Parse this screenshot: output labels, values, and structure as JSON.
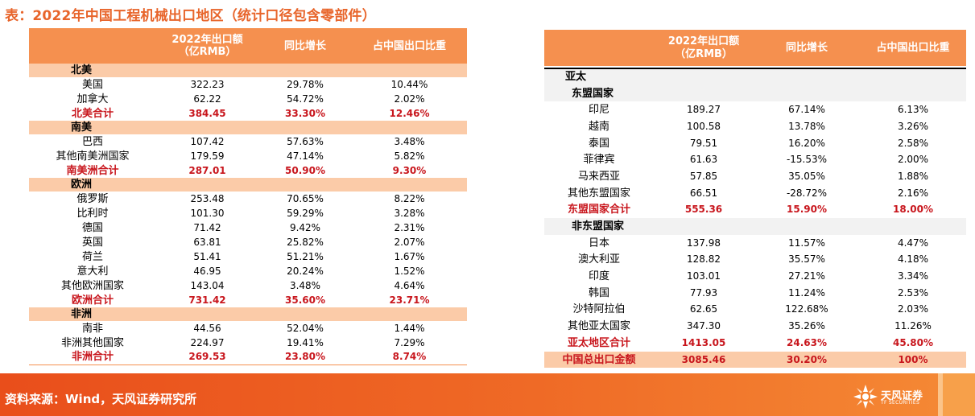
{
  "title": "表：2022年中国工程机械出口地区（统计口径包含零部件）",
  "headers": {
    "amount_line1": "2022年出口额",
    "amount_line2": "（亿RMB）",
    "growth": "同比增长",
    "share": "占中国出口比重"
  },
  "left": {
    "groups": [
      {
        "region": "北美",
        "rows": [
          {
            "name": "美国",
            "amount": "322.23",
            "growth": "29.78%",
            "share": "10.44%"
          },
          {
            "name": "加拿大",
            "amount": "62.22",
            "growth": "54.72%",
            "share": "2.02%"
          }
        ],
        "total": {
          "name": "北美合计",
          "amount": "384.45",
          "growth": "33.30%",
          "share": "12.46%"
        }
      },
      {
        "region": "南美",
        "rows": [
          {
            "name": "巴西",
            "amount": "107.42",
            "growth": "57.63%",
            "share": "3.48%"
          },
          {
            "name": "其他南美洲国家",
            "amount": "179.59",
            "growth": "47.14%",
            "share": "5.82%"
          }
        ],
        "total": {
          "name": "南美洲合计",
          "amount": "287.01",
          "growth": "50.90%",
          "share": "9.30%"
        }
      },
      {
        "region": "欧洲",
        "rows": [
          {
            "name": "俄罗斯",
            "amount": "253.48",
            "growth": "70.65%",
            "share": "8.22%"
          },
          {
            "name": "比利时",
            "amount": "101.30",
            "growth": "59.29%",
            "share": "3.28%"
          },
          {
            "name": "德国",
            "amount": "71.42",
            "growth": "9.42%",
            "share": "2.31%"
          },
          {
            "name": "英国",
            "amount": "63.81",
            "growth": "25.82%",
            "share": "2.07%"
          },
          {
            "name": "荷兰",
            "amount": "51.41",
            "growth": "51.21%",
            "share": "1.67%"
          },
          {
            "name": "意大利",
            "amount": "46.95",
            "growth": "20.24%",
            "share": "1.52%"
          },
          {
            "name": "其他欧洲国家",
            "amount": "143.04",
            "growth": "3.48%",
            "share": "4.64%"
          }
        ],
        "total": {
          "name": "欧洲合计",
          "amount": "731.42",
          "growth": "35.60%",
          "share": "23.71%"
        }
      },
      {
        "region": "非洲",
        "rows": [
          {
            "name": "南非",
            "amount": "44.56",
            "growth": "52.04%",
            "share": "1.44%"
          },
          {
            "name": "非洲其他国家",
            "amount": "224.97",
            "growth": "19.41%",
            "share": "7.29%"
          }
        ],
        "total": {
          "name": "非洲合计",
          "amount": "269.53",
          "growth": "23.80%",
          "share": "8.74%"
        }
      }
    ]
  },
  "right": {
    "region": "亚太",
    "subgroups": [
      {
        "label": "东盟国家",
        "rows": [
          {
            "name": "印尼",
            "amount": "189.27",
            "growth": "67.14%",
            "share": "6.13%"
          },
          {
            "name": "越南",
            "amount": "100.58",
            "growth": "13.78%",
            "share": "3.26%"
          },
          {
            "name": "泰国",
            "amount": "79.51",
            "growth": "16.20%",
            "share": "2.58%"
          },
          {
            "name": "菲律宾",
            "amount": "61.63",
            "growth": "-15.53%",
            "share": "2.00%"
          },
          {
            "name": "马来西亚",
            "amount": "57.85",
            "growth": "35.05%",
            "share": "1.88%"
          },
          {
            "name": "其他东盟国家",
            "amount": "66.51",
            "growth": "-28.72%",
            "share": "2.16%"
          }
        ],
        "total": {
          "name": "东盟国家合计",
          "amount": "555.36",
          "growth": "15.90%",
          "share": "18.00%"
        }
      },
      {
        "label": "非东盟国家",
        "rows": [
          {
            "name": "日本",
            "amount": "137.98",
            "growth": "11.57%",
            "share": "4.47%"
          },
          {
            "name": "澳大利亚",
            "amount": "128.82",
            "growth": "35.57%",
            "share": "4.18%"
          },
          {
            "name": "印度",
            "amount": "103.01",
            "growth": "27.21%",
            "share": "3.34%"
          },
          {
            "name": "韩国",
            "amount": "77.93",
            "growth": "11.24%",
            "share": "2.53%"
          },
          {
            "name": "沙特阿拉伯",
            "amount": "62.65",
            "growth": "122.68%",
            "share": "2.03%"
          },
          {
            "name": "其他亚太国家",
            "amount": "347.30",
            "growth": "35.26%",
            "share": "11.26%"
          }
        ],
        "total": null
      }
    ],
    "region_total": {
      "name": "亚太地区合计",
      "amount": "1413.05",
      "growth": "24.63%",
      "share": "45.80%"
    },
    "grand_total": {
      "name": "中国总出口金额",
      "amount": "3085.46",
      "growth": "30.20%",
      "share": "100%"
    }
  },
  "footer": {
    "source": "资料来源：Wind，天风证券研究所",
    "brand": "天风证券",
    "brand_en": "TF SECURITIES"
  },
  "colors": {
    "title": "#e8652b",
    "header_bg": "#f5904f",
    "region_bg": "#fbcba8",
    "total_text": "#c8161d",
    "footer_bg": "#ef6a26"
  }
}
